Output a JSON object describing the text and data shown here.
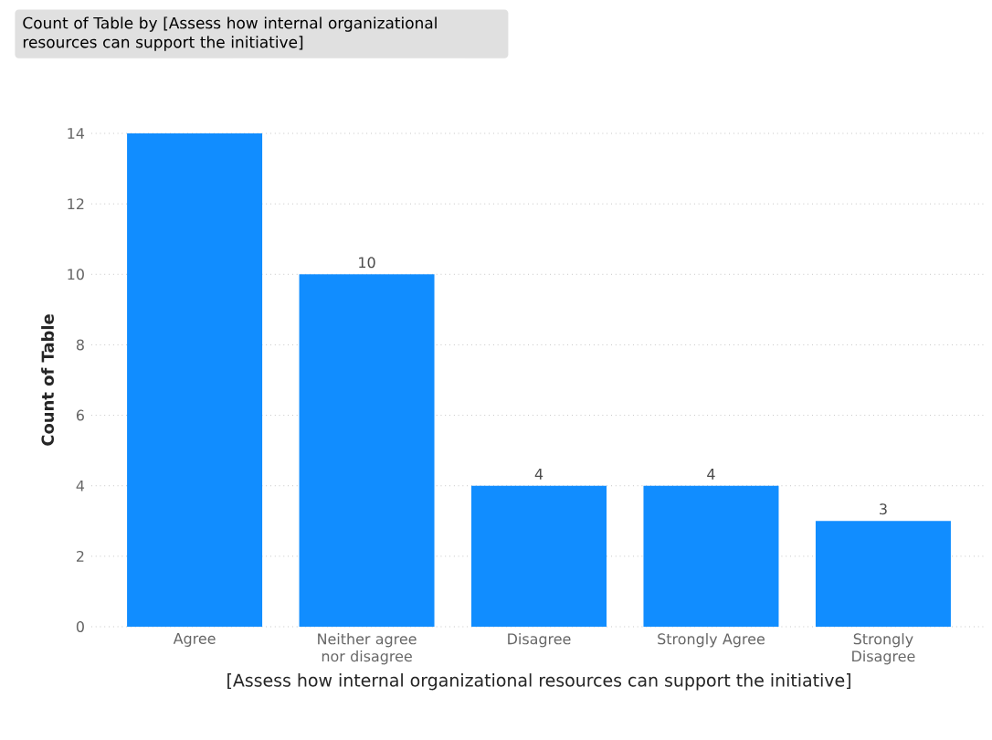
{
  "chart_data": {
    "type": "bar",
    "title": "Count of Table by [Assess how internal organizational resources can support the initiative]",
    "xlabel": "[Assess how internal organizational resources can support the initiative]",
    "ylabel": "Count of Table",
    "categories": [
      "Agree",
      "Neither agree nor disagree",
      "Disagree",
      "Strongly Agree",
      "Strongly Disagree"
    ],
    "values": [
      14,
      10,
      4,
      4,
      3
    ],
    "value_labels": [
      null,
      "10",
      "4",
      "4",
      "3"
    ],
    "color": "#118dff",
    "ylim": [
      0,
      14
    ],
    "yticks": [
      0,
      2,
      4,
      6,
      8,
      10,
      12,
      14
    ],
    "grid": "y"
  }
}
